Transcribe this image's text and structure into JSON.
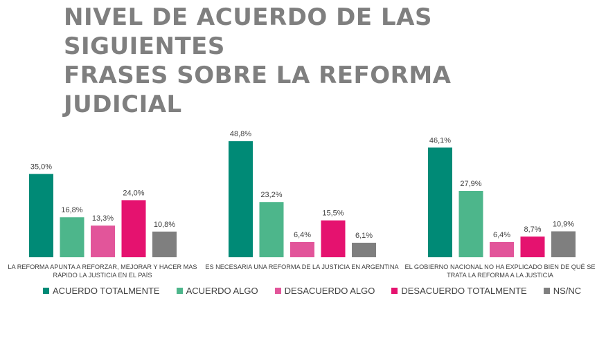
{
  "chart_data": {
    "type": "bar",
    "title_lines": [
      "NIVEL DE ACUERDO DE LAS SIGUIENTES",
      "FRASES SOBRE LA REFORMA JUDICIAL"
    ],
    "categories": [
      [
        "LA REFORMA APUNTA A REFORZAR, MEJORAR Y HACER MAS",
        "RÁPIDO LA JUSTICIA EN EL PAÍS"
      ],
      [
        "ES NECESARIA UNA REFORMA DE LA JUSTICIA EN ARGENTINA"
      ],
      [
        "EL GOBIERNO NACIONAL NO HA EXPLICADO BIEN DE QUÉ SE",
        "TRATA LA REFORMA A LA JUSTICIA"
      ]
    ],
    "series": [
      {
        "name": "ACUERDO TOTALMENTE",
        "color": "#008a76",
        "values": [
          35.0,
          48.8,
          46.1
        ],
        "labels": [
          "35,0%",
          "48,8%",
          "46,1%"
        ]
      },
      {
        "name": "ACUERDO ALGO",
        "color": "#4db68b",
        "values": [
          16.8,
          23.2,
          27.9
        ],
        "labels": [
          "16,8%",
          "23,2%",
          "27,9%"
        ]
      },
      {
        "name": "DESACUERDO ALGO",
        "color": "#e2559a",
        "values": [
          13.3,
          6.4,
          6.4
        ],
        "labels": [
          "13,3%",
          "6,4%",
          "6,4%"
        ]
      },
      {
        "name": "DESACUERDO TOTALMENTE",
        "color": "#e5126f",
        "values": [
          24.0,
          15.5,
          8.7
        ],
        "labels": [
          "24,0%",
          "15,5%",
          "8,7%"
        ]
      },
      {
        "name": "NS/NC",
        "color": "#7f7f7f",
        "values": [
          10.8,
          6.1,
          10.9
        ],
        "labels": [
          "10,8%",
          "6,1%",
          "10,9%"
        ]
      }
    ],
    "ylim": [
      0,
      50
    ],
    "grid": false,
    "legend_position": "bottom-left",
    "label_color": "#404040",
    "title_color": "#7f7f7f"
  }
}
